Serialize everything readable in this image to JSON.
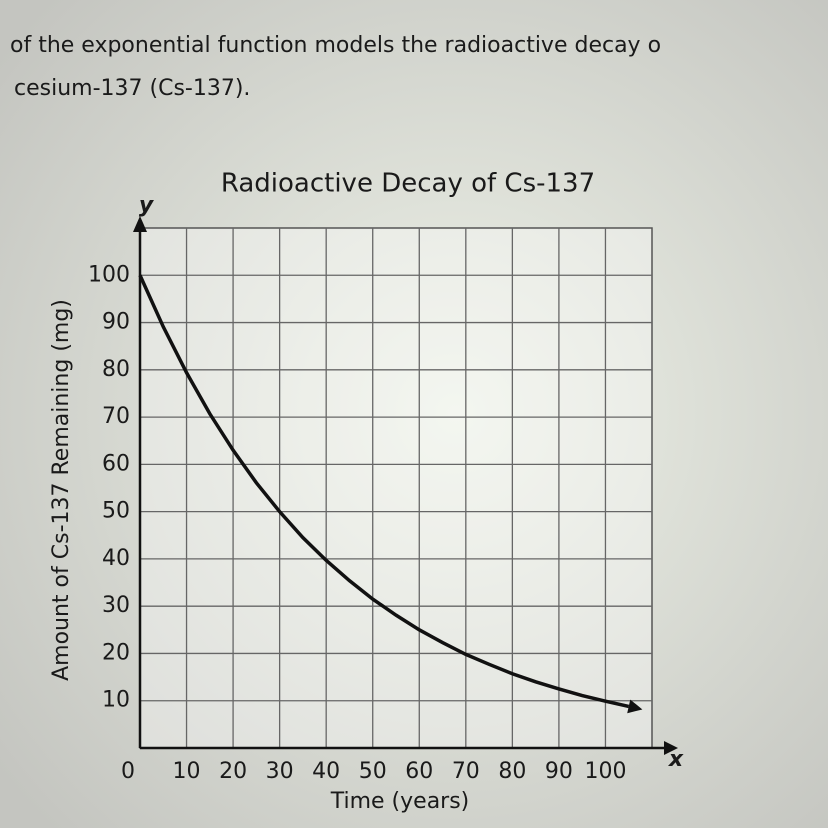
{
  "intro": [
    "of the exponential function models the radioactive decay o",
    "cesium-137 (Cs-137)."
  ],
  "chart_data": {
    "type": "line",
    "title": "Radioactive Decay of Cs-137",
    "x_label": "Time (years)",
    "y_label": "Amount of Cs-137 Remaining (mg)",
    "x_axis_letter": "x",
    "y_axis_letter": "y",
    "x": [
      0,
      5,
      10,
      15,
      20,
      25,
      30,
      35,
      40,
      45,
      50,
      55,
      60,
      65,
      70,
      75,
      80,
      85,
      90,
      95,
      100,
      105
    ],
    "values": [
      100,
      89.1,
      79.4,
      70.7,
      63,
      56.1,
      50,
      44.5,
      39.7,
      35.4,
      31.5,
      28.1,
      25,
      22.3,
      19.8,
      17.7,
      15.7,
      14,
      12.5,
      11.1,
      9.9,
      8.8
    ],
    "color": "#111111",
    "xlim": [
      0,
      110
    ],
    "ylim": [
      0,
      110
    ],
    "xticks": [
      0,
      10,
      20,
      30,
      40,
      50,
      60,
      70,
      80,
      90,
      100
    ],
    "yticks": [
      10,
      20,
      30,
      40,
      50,
      60,
      70,
      80,
      90,
      100
    ],
    "grid": true
  }
}
